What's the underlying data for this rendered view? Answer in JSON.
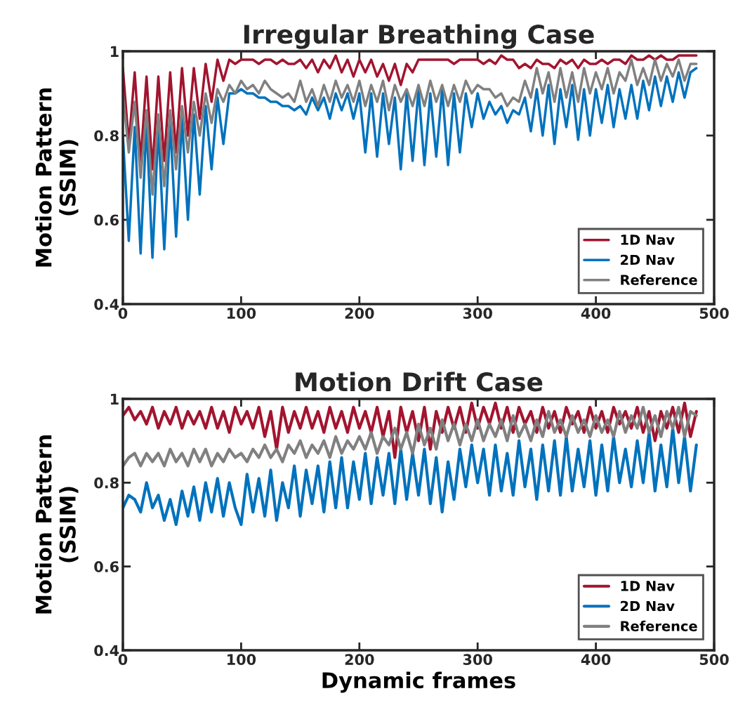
{
  "chart_data": [
    {
      "type": "line",
      "title": "Irregular Breathing Case",
      "ylabel": "Motion Pattern\n(SSIM)",
      "x": [
        0,
        5,
        10,
        15,
        20,
        25,
        30,
        35,
        40,
        45,
        50,
        55,
        60,
        65,
        70,
        75,
        80,
        85,
        90,
        95,
        100,
        105,
        110,
        115,
        120,
        125,
        130,
        135,
        140,
        145,
        150,
        155,
        160,
        165,
        170,
        175,
        180,
        185,
        190,
        195,
        200,
        205,
        210,
        215,
        220,
        225,
        230,
        235,
        240,
        245,
        250,
        255,
        260,
        265,
        270,
        275,
        280,
        285,
        290,
        295,
        300,
        305,
        310,
        315,
        320,
        325,
        330,
        335,
        340,
        345,
        350,
        355,
        360,
        365,
        370,
        375,
        380,
        385,
        390,
        395,
        400,
        405,
        410,
        415,
        420,
        425,
        430,
        435,
        440,
        445,
        450,
        455,
        460,
        465,
        470,
        475,
        480,
        485
      ],
      "series": [
        {
          "name": "1D Nav",
          "color": "#a2142f",
          "values": [
            0.96,
            0.78,
            0.95,
            0.74,
            0.94,
            0.72,
            0.94,
            0.74,
            0.95,
            0.76,
            0.96,
            0.8,
            0.96,
            0.84,
            0.97,
            0.88,
            0.98,
            0.93,
            0.98,
            0.97,
            0.98,
            0.98,
            0.98,
            0.97,
            0.98,
            0.98,
            0.97,
            0.98,
            0.97,
            0.97,
            0.98,
            0.96,
            0.98,
            0.95,
            0.98,
            0.96,
            0.99,
            0.95,
            0.98,
            0.94,
            0.98,
            0.95,
            0.98,
            0.94,
            0.97,
            0.93,
            0.97,
            0.92,
            0.97,
            0.95,
            0.98,
            0.98,
            0.98,
            0.98,
            0.98,
            0.98,
            0.97,
            0.98,
            0.98,
            0.98,
            0.98,
            0.97,
            0.98,
            0.97,
            0.99,
            0.98,
            0.98,
            0.96,
            0.97,
            0.96,
            0.98,
            0.97,
            0.97,
            0.96,
            0.98,
            0.97,
            0.98,
            0.96,
            0.98,
            0.97,
            0.97,
            0.98,
            0.97,
            0.98,
            0.98,
            0.97,
            0.99,
            0.98,
            0.98,
            0.99,
            0.98,
            0.99,
            0.98,
            0.98,
            0.99,
            0.99,
            0.99,
            0.99
          ]
        },
        {
          "name": "2D Nav",
          "color": "#0072bd",
          "values": [
            0.8,
            0.55,
            0.82,
            0.52,
            0.83,
            0.51,
            0.82,
            0.53,
            0.83,
            0.56,
            0.84,
            0.6,
            0.85,
            0.66,
            0.87,
            0.72,
            0.89,
            0.78,
            0.9,
            0.9,
            0.91,
            0.9,
            0.9,
            0.89,
            0.89,
            0.88,
            0.88,
            0.87,
            0.87,
            0.86,
            0.87,
            0.85,
            0.89,
            0.86,
            0.89,
            0.84,
            0.9,
            0.86,
            0.9,
            0.84,
            0.9,
            0.76,
            0.9,
            0.75,
            0.9,
            0.78,
            0.89,
            0.72,
            0.9,
            0.74,
            0.91,
            0.73,
            0.9,
            0.75,
            0.91,
            0.73,
            0.9,
            0.76,
            0.9,
            0.82,
            0.9,
            0.84,
            0.88,
            0.85,
            0.87,
            0.83,
            0.86,
            0.85,
            0.89,
            0.81,
            0.91,
            0.8,
            0.92,
            0.78,
            0.91,
            0.82,
            0.92,
            0.79,
            0.91,
            0.8,
            0.91,
            0.83,
            0.92,
            0.82,
            0.91,
            0.84,
            0.92,
            0.84,
            0.93,
            0.86,
            0.94,
            0.87,
            0.94,
            0.88,
            0.95,
            0.89,
            0.95,
            0.96
          ]
        },
        {
          "name": "Reference",
          "color": "#808080",
          "values": [
            0.9,
            0.76,
            0.88,
            0.7,
            0.86,
            0.66,
            0.85,
            0.68,
            0.86,
            0.72,
            0.87,
            0.76,
            0.88,
            0.8,
            0.9,
            0.83,
            0.91,
            0.88,
            0.92,
            0.9,
            0.93,
            0.91,
            0.92,
            0.9,
            0.93,
            0.91,
            0.9,
            0.89,
            0.9,
            0.88,
            0.93,
            0.88,
            0.91,
            0.87,
            0.92,
            0.88,
            0.93,
            0.89,
            0.92,
            0.88,
            0.93,
            0.87,
            0.92,
            0.88,
            0.93,
            0.86,
            0.92,
            0.88,
            0.91,
            0.87,
            0.92,
            0.87,
            0.93,
            0.88,
            0.92,
            0.87,
            0.92,
            0.88,
            0.93,
            0.9,
            0.92,
            0.91,
            0.91,
            0.89,
            0.9,
            0.87,
            0.89,
            0.88,
            0.93,
            0.89,
            0.96,
            0.9,
            0.95,
            0.88,
            0.96,
            0.89,
            0.95,
            0.88,
            0.96,
            0.9,
            0.95,
            0.91,
            0.96,
            0.9,
            0.95,
            0.93,
            0.98,
            0.92,
            0.96,
            0.92,
            0.98,
            0.93,
            0.97,
            0.94,
            0.98,
            0.93,
            0.97,
            0.97
          ]
        }
      ],
      "xlim": [
        0,
        500
      ],
      "xticks": [
        0,
        100,
        200,
        300,
        400,
        500
      ],
      "ylim": [
        0.4,
        1
      ],
      "yticks": [
        0.4,
        0.6,
        0.8,
        {
          "value": 1,
          "label": "1"
        }
      ],
      "legend": "bottom right",
      "grid": false,
      "marker": "none",
      "line_style": "solid"
    },
    {
      "type": "line",
      "title": "Motion Drift Case",
      "ylabel": "Motion Pattern\n(SSIM)",
      "xlabel": "Dynamic frames",
      "x": [
        0,
        5,
        10,
        15,
        20,
        25,
        30,
        35,
        40,
        45,
        50,
        55,
        60,
        65,
        70,
        75,
        80,
        85,
        90,
        95,
        100,
        105,
        110,
        115,
        120,
        125,
        130,
        135,
        140,
        145,
        150,
        155,
        160,
        165,
        170,
        175,
        180,
        185,
        190,
        195,
        200,
        205,
        210,
        215,
        220,
        225,
        230,
        235,
        240,
        245,
        250,
        255,
        260,
        265,
        270,
        275,
        280,
        285,
        290,
        295,
        300,
        305,
        310,
        315,
        320,
        325,
        330,
        335,
        340,
        345,
        350,
        355,
        360,
        365,
        370,
        375,
        380,
        385,
        390,
        395,
        400,
        405,
        410,
        415,
        420,
        425,
        430,
        435,
        440,
        445,
        450,
        455,
        460,
        465,
        470,
        475,
        480,
        485
      ],
      "series": [
        {
          "name": "1D Nav",
          "color": "#a2142f",
          "values": [
            0.96,
            0.98,
            0.95,
            0.97,
            0.94,
            0.98,
            0.93,
            0.97,
            0.94,
            0.98,
            0.93,
            0.97,
            0.94,
            0.97,
            0.93,
            0.98,
            0.93,
            0.97,
            0.92,
            0.98,
            0.94,
            0.97,
            0.93,
            0.98,
            0.91,
            0.97,
            0.88,
            0.98,
            0.92,
            0.97,
            0.93,
            0.98,
            0.93,
            0.97,
            0.92,
            0.98,
            0.93,
            0.97,
            0.92,
            0.98,
            0.93,
            0.97,
            0.92,
            0.98,
            0.91,
            0.97,
            0.86,
            0.98,
            0.92,
            0.97,
            0.9,
            0.98,
            0.88,
            0.97,
            0.92,
            0.98,
            0.93,
            0.98,
            0.92,
            0.99,
            0.93,
            0.98,
            0.94,
            0.99,
            0.93,
            0.98,
            0.92,
            0.98,
            0.94,
            0.97,
            0.92,
            0.98,
            0.93,
            0.97,
            0.92,
            0.98,
            0.94,
            0.97,
            0.92,
            0.98,
            0.93,
            0.97,
            0.92,
            0.98,
            0.94,
            0.97,
            0.93,
            0.98,
            0.92,
            0.97,
            0.9,
            0.97,
            0.93,
            0.98,
            0.92,
            0.99,
            0.91,
            0.97
          ]
        },
        {
          "name": "2D Nav",
          "color": "#0072bd",
          "values": [
            0.74,
            0.77,
            0.76,
            0.73,
            0.8,
            0.74,
            0.77,
            0.71,
            0.76,
            0.7,
            0.78,
            0.72,
            0.79,
            0.71,
            0.8,
            0.73,
            0.81,
            0.72,
            0.8,
            0.74,
            0.7,
            0.82,
            0.73,
            0.81,
            0.72,
            0.83,
            0.71,
            0.8,
            0.74,
            0.84,
            0.72,
            0.83,
            0.75,
            0.84,
            0.73,
            0.85,
            0.74,
            0.86,
            0.74,
            0.85,
            0.76,
            0.87,
            0.75,
            0.86,
            0.77,
            0.87,
            0.75,
            0.88,
            0.76,
            0.87,
            0.77,
            0.88,
            0.75,
            0.86,
            0.73,
            0.85,
            0.76,
            0.88,
            0.79,
            0.89,
            0.8,
            0.88,
            0.77,
            0.89,
            0.78,
            0.87,
            0.77,
            0.9,
            0.79,
            0.88,
            0.76,
            0.89,
            0.78,
            0.9,
            0.77,
            0.91,
            0.78,
            0.88,
            0.79,
            0.9,
            0.77,
            0.89,
            0.78,
            0.91,
            0.8,
            0.88,
            0.79,
            0.9,
            0.8,
            0.92,
            0.78,
            0.89,
            0.79,
            0.93,
            0.8,
            0.91,
            0.78,
            0.89
          ]
        },
        {
          "name": "Reference",
          "color": "#808080",
          "values": [
            0.84,
            0.86,
            0.87,
            0.84,
            0.87,
            0.85,
            0.87,
            0.84,
            0.88,
            0.85,
            0.87,
            0.84,
            0.88,
            0.85,
            0.88,
            0.84,
            0.87,
            0.85,
            0.88,
            0.86,
            0.87,
            0.85,
            0.88,
            0.86,
            0.89,
            0.86,
            0.88,
            0.85,
            0.89,
            0.87,
            0.9,
            0.86,
            0.89,
            0.87,
            0.9,
            0.86,
            0.91,
            0.87,
            0.9,
            0.88,
            0.91,
            0.88,
            0.92,
            0.87,
            0.91,
            0.89,
            0.93,
            0.88,
            0.92,
            0.87,
            0.94,
            0.89,
            0.93,
            0.88,
            0.95,
            0.9,
            0.94,
            0.89,
            0.94,
            0.9,
            0.95,
            0.9,
            0.94,
            0.91,
            0.95,
            0.9,
            0.96,
            0.91,
            0.94,
            0.9,
            0.95,
            0.91,
            0.97,
            0.92,
            0.95,
            0.91,
            0.96,
            0.92,
            0.95,
            0.91,
            0.96,
            0.92,
            0.95,
            0.91,
            0.97,
            0.92,
            0.96,
            0.93,
            0.98,
            0.92,
            0.96,
            0.91,
            0.97,
            0.93,
            0.98,
            0.91,
            0.97,
            0.96
          ]
        }
      ],
      "xlim": [
        0,
        500
      ],
      "xticks": [
        0,
        100,
        200,
        300,
        400,
        500
      ],
      "ylim": [
        0.4,
        1
      ],
      "yticks": [
        0.4,
        0.6,
        0.8,
        {
          "value": 1,
          "label": "1"
        }
      ],
      "legend": "bottom right",
      "grid": false,
      "marker": "none",
      "line_style": "solid"
    }
  ]
}
